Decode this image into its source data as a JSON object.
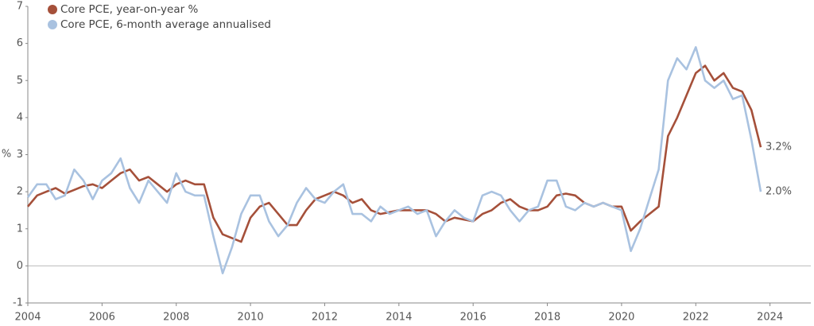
{
  "chart_data": {
    "type": "line",
    "y_label": "%",
    "x": [
      2004,
      2004.25,
      2004.5,
      2004.75,
      2005,
      2005.25,
      2005.5,
      2005.75,
      2006,
      2006.25,
      2006.5,
      2006.75,
      2007,
      2007.25,
      2007.5,
      2007.75,
      2008,
      2008.25,
      2008.5,
      2008.75,
      2009,
      2009.25,
      2009.5,
      2009.75,
      2010,
      2010.25,
      2010.5,
      2010.75,
      2011,
      2011.25,
      2011.5,
      2011.75,
      2012,
      2012.25,
      2012.5,
      2012.75,
      2013,
      2013.25,
      2013.5,
      2013.75,
      2014,
      2014.25,
      2014.5,
      2014.75,
      2015,
      2015.25,
      2015.5,
      2015.75,
      2016,
      2016.25,
      2016.5,
      2016.75,
      2017,
      2017.25,
      2017.5,
      2017.75,
      2018,
      2018.25,
      2018.5,
      2018.75,
      2019,
      2019.25,
      2019.5,
      2019.75,
      2020,
      2020.25,
      2020.5,
      2020.75,
      2021,
      2021.25,
      2021.5,
      2021.75,
      2022,
      2022.25,
      2022.5,
      2022.75,
      2023,
      2023.25,
      2023.5,
      2023.75
    ],
    "series": [
      {
        "name": "Core PCE, year-on-year %",
        "color": "#a5503a",
        "values": [
          1.6,
          1.9,
          2.0,
          2.1,
          1.95,
          2.05,
          2.15,
          2.2,
          2.1,
          2.3,
          2.5,
          2.6,
          2.3,
          2.4,
          2.2,
          2.0,
          2.2,
          2.3,
          2.2,
          2.2,
          1.3,
          0.85,
          0.75,
          0.65,
          1.3,
          1.6,
          1.7,
          1.4,
          1.1,
          1.1,
          1.5,
          1.8,
          1.9,
          2.0,
          1.9,
          1.7,
          1.8,
          1.5,
          1.4,
          1.45,
          1.5,
          1.5,
          1.5,
          1.5,
          1.4,
          1.2,
          1.3,
          1.25,
          1.2,
          1.4,
          1.5,
          1.7,
          1.8,
          1.6,
          1.5,
          1.5,
          1.6,
          1.9,
          1.95,
          1.9,
          1.7,
          1.6,
          1.7,
          1.6,
          1.6,
          0.95,
          1.2,
          1.4,
          1.6,
          3.5,
          4.0,
          4.6,
          5.2,
          5.4,
          5.0,
          5.2,
          4.8,
          4.7,
          4.2,
          3.2
        ],
        "value_labels": [
          null,
          null,
          null,
          null,
          null,
          null,
          null,
          null,
          null,
          null,
          null,
          null,
          null,
          null,
          null,
          null,
          null,
          null,
          null,
          null,
          null,
          null,
          null,
          null,
          null,
          null,
          null,
          null,
          null,
          null,
          null,
          null,
          null,
          null,
          null,
          null,
          null,
          null,
          null,
          null,
          null,
          null,
          null,
          null,
          null,
          null,
          null,
          null,
          null,
          null,
          null,
          null,
          null,
          null,
          null,
          null,
          null,
          null,
          null,
          null,
          null,
          null,
          null,
          null,
          null,
          null,
          null,
          null,
          null,
          null,
          null,
          null,
          null,
          null,
          null,
          null,
          null,
          null,
          null,
          "3.2%"
        ]
      },
      {
        "name": "Core PCE, 6-month average annualised",
        "color": "#a9c2e0",
        "values": [
          1.85,
          2.2,
          2.2,
          1.8,
          1.9,
          2.6,
          2.3,
          1.8,
          2.3,
          2.5,
          2.9,
          2.1,
          1.7,
          2.3,
          2.0,
          1.7,
          2.5,
          2.0,
          1.9,
          1.9,
          0.8,
          -0.2,
          0.5,
          1.4,
          1.9,
          1.9,
          1.2,
          0.8,
          1.1,
          1.7,
          2.1,
          1.8,
          1.7,
          2.0,
          2.2,
          1.4,
          1.4,
          1.2,
          1.6,
          1.4,
          1.5,
          1.6,
          1.4,
          1.5,
          0.8,
          1.2,
          1.5,
          1.3,
          1.2,
          1.9,
          2.0,
          1.9,
          1.5,
          1.2,
          1.5,
          1.6,
          2.3,
          2.3,
          1.6,
          1.5,
          1.7,
          1.6,
          1.7,
          1.6,
          1.5,
          0.4,
          1.0,
          1.8,
          2.6,
          5.0,
          5.6,
          5.3,
          5.9,
          5.0,
          4.8,
          5.0,
          4.5,
          4.6,
          3.4,
          2.0
        ],
        "value_labels": [
          null,
          null,
          null,
          null,
          null,
          null,
          null,
          null,
          null,
          null,
          null,
          null,
          null,
          null,
          null,
          null,
          null,
          null,
          null,
          null,
          null,
          null,
          null,
          null,
          null,
          null,
          null,
          null,
          null,
          null,
          null,
          null,
          null,
          null,
          null,
          null,
          null,
          null,
          null,
          null,
          null,
          null,
          null,
          null,
          null,
          null,
          null,
          null,
          null,
          null,
          null,
          null,
          null,
          null,
          null,
          null,
          null,
          null,
          null,
          null,
          null,
          null,
          null,
          null,
          null,
          null,
          null,
          null,
          null,
          null,
          null,
          null,
          null,
          null,
          null,
          null,
          null,
          null,
          null,
          "2.0%"
        ]
      }
    ],
    "xlim": [
      2004,
      2025.1
    ],
    "xticks": [
      2004,
      2006,
      2008,
      2010,
      2012,
      2014,
      2016,
      2018,
      2020,
      2022,
      2024
    ],
    "ylim": [
      -1,
      7
    ],
    "yticks": [
      -1,
      0,
      1,
      2,
      3,
      4,
      5,
      6,
      7
    ],
    "zero_line": true,
    "legend": "top-left"
  }
}
